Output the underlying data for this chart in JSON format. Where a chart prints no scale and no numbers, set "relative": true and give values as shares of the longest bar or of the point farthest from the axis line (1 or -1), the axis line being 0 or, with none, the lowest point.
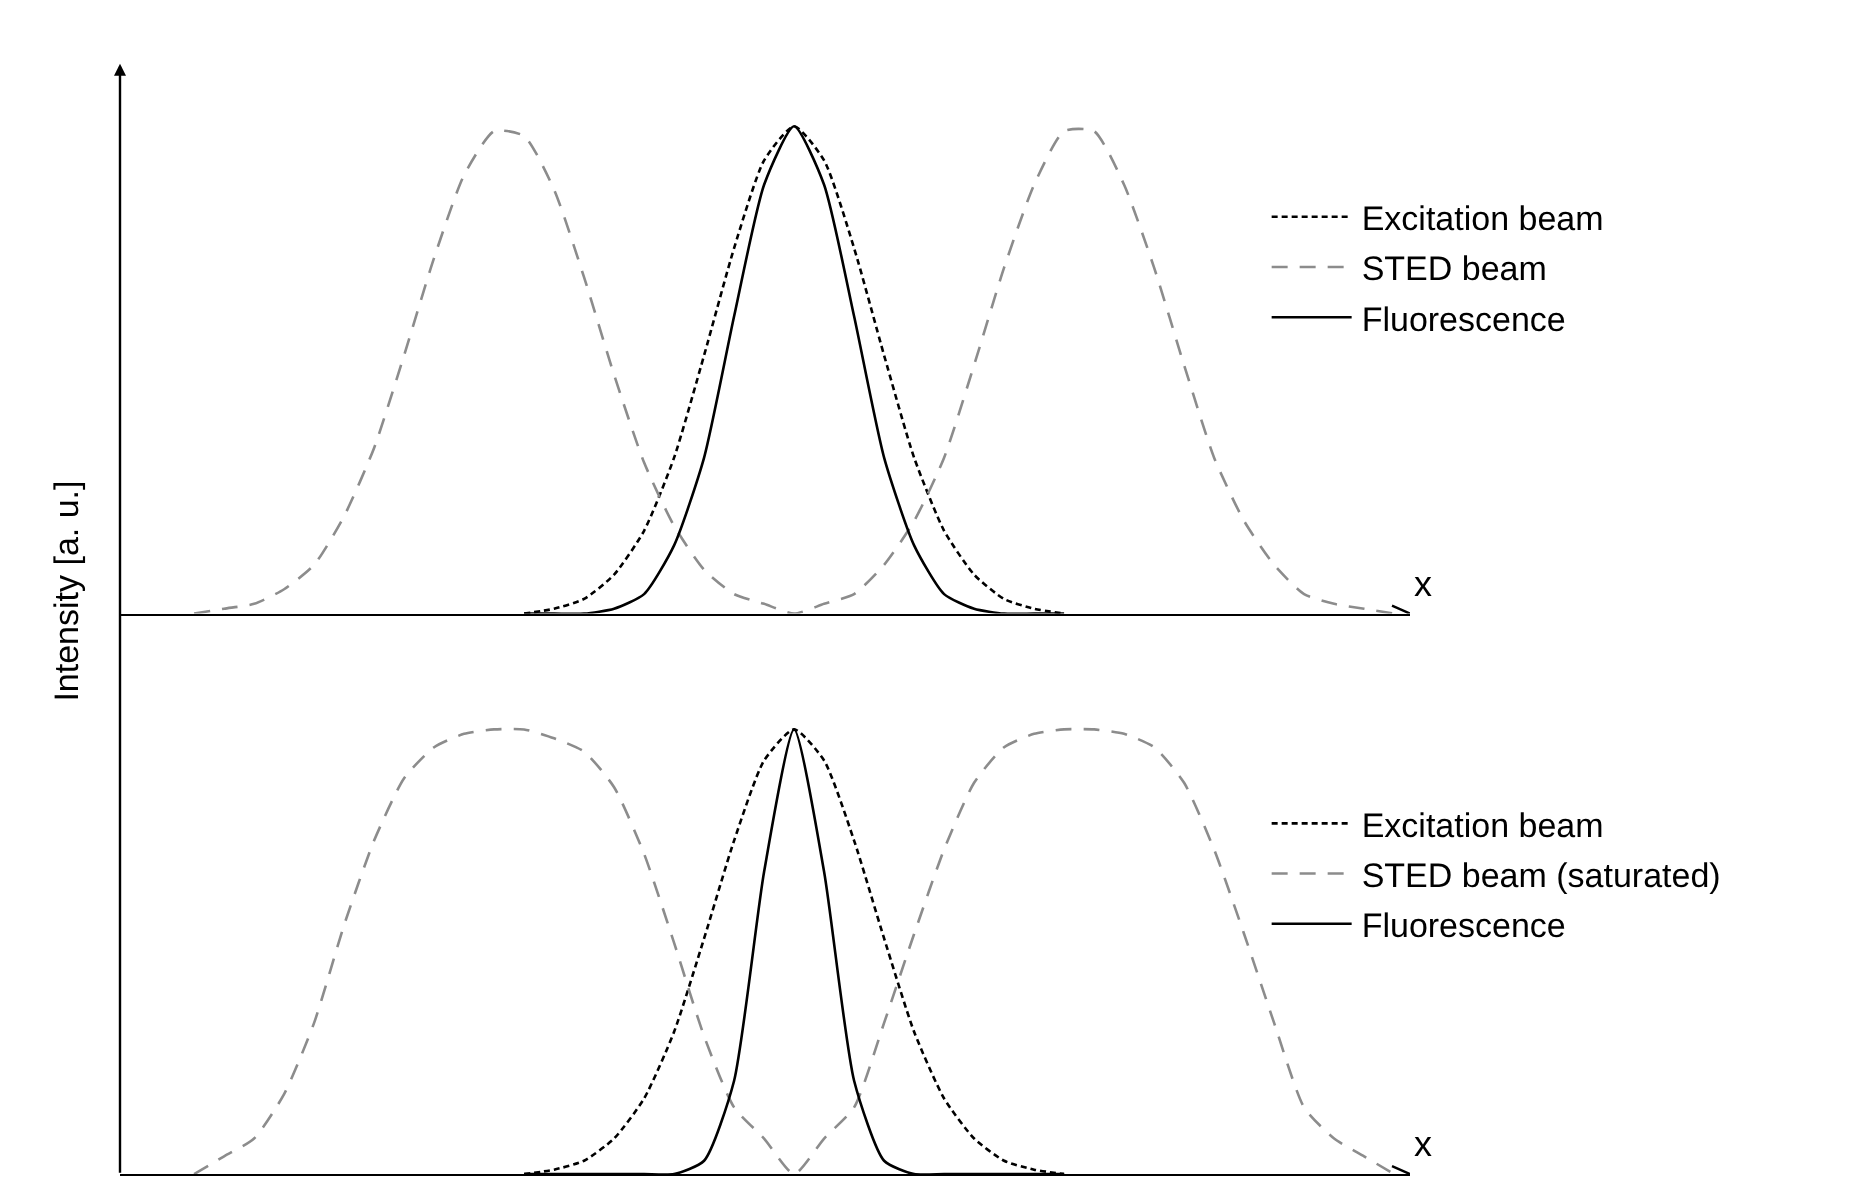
{
  "chart_data": [
    {
      "type": "line",
      "relative": true,
      "xlabel": "x",
      "ylabel": "Intensity [a. u.]",
      "legend": "top right",
      "marker": "none",
      "categories": [
        null,
        null,
        null,
        null,
        null,
        null,
        null,
        null,
        null,
        null,
        null,
        null,
        null,
        null,
        null,
        null,
        null,
        null,
        null,
        null,
        null,
        null,
        null,
        null,
        null,
        null,
        null,
        null,
        null,
        null,
        null,
        null,
        null,
        null,
        null,
        null,
        null,
        null,
        null,
        null,
        null
      ],
      "series": [
        {
          "name": "Excitation beam",
          "color": "#000000",
          "line_style": "dotted",
          "values": [
            null,
            null,
            null,
            null,
            null,
            null,
            null,
            null,
            null,
            null,
            null,
            0,
            0.01,
            0.03,
            0.08,
            0.17,
            0.32,
            0.53,
            0.75,
            0.93,
            1,
            0.93,
            0.75,
            0.53,
            0.32,
            0.17,
            0.08,
            0.03,
            0.01,
            0,
            null,
            null,
            null,
            null,
            null,
            null,
            null,
            null,
            null,
            null,
            null
          ]
        },
        {
          "name": "STED beam",
          "color": "#8c8c8c",
          "line_style": "dashed",
          "values": [
            0,
            0.01,
            0.02,
            0.05,
            0.1,
            0.2,
            0.34,
            0.53,
            0.73,
            0.9,
            0.99,
            0.98,
            0.87,
            0.69,
            0.49,
            0.31,
            0.18,
            0.09,
            0.04,
            0.02,
            0,
            0.02,
            0.04,
            0.1,
            0.19,
            0.32,
            0.51,
            0.71,
            0.88,
            0.99,
            0.99,
            0.88,
            0.71,
            0.51,
            0.32,
            0.19,
            0.1,
            0.04,
            0.02,
            0.01,
            0
          ]
        },
        {
          "name": "Fluorescence",
          "color": "#000000",
          "line_style": "solid",
          "values": [
            null,
            null,
            null,
            null,
            null,
            null,
            null,
            null,
            null,
            null,
            null,
            0,
            0,
            0,
            0.01,
            0.04,
            0.14,
            0.32,
            0.61,
            0.88,
            1,
            0.88,
            0.61,
            0.32,
            0.14,
            0.04,
            0.01,
            0,
            0,
            0,
            null,
            null,
            null,
            null,
            null,
            null,
            null,
            null,
            null,
            null,
            null
          ]
        }
      ]
    },
    {
      "type": "line",
      "relative": true,
      "xlabel": "x",
      "legend": "top right",
      "marker": "none",
      "categories": [
        null,
        null,
        null,
        null,
        null,
        null,
        null,
        null,
        null,
        null,
        null,
        null,
        null,
        null,
        null,
        null,
        null,
        null,
        null,
        null,
        null,
        null,
        null,
        null,
        null,
        null,
        null,
        null,
        null,
        null,
        null,
        null,
        null,
        null,
        null,
        null,
        null,
        null,
        null,
        null,
        null
      ],
      "series": [
        {
          "name": "Excitation beam",
          "color": "#000000",
          "line_style": "dotted",
          "values": [
            null,
            null,
            null,
            null,
            null,
            null,
            null,
            null,
            null,
            null,
            null,
            0,
            0.01,
            0.03,
            0.08,
            0.17,
            0.32,
            0.53,
            0.75,
            0.93,
            1,
            0.93,
            0.75,
            0.53,
            0.32,
            0.17,
            0.08,
            0.03,
            0.01,
            0,
            null,
            null,
            null,
            null,
            null,
            null,
            null,
            null,
            null,
            null,
            null
          ]
        },
        {
          "name": "STED beam (saturated)",
          "color": "#8c8c8c",
          "line_style": "dashed",
          "values": [
            0,
            0.04,
            0.08,
            0.18,
            0.34,
            0.56,
            0.75,
            0.89,
            0.96,
            0.99,
            1,
            1,
            0.98,
            0.95,
            0.87,
            0.72,
            0.52,
            0.31,
            0.15,
            0.08,
            0,
            0.08,
            0.15,
            0.34,
            0.54,
            0.73,
            0.88,
            0.96,
            0.99,
            1,
            1,
            0.99,
            0.96,
            0.88,
            0.73,
            0.54,
            0.34,
            0.15,
            0.08,
            0.04,
            0
          ]
        },
        {
          "name": "Fluorescence",
          "color": "#000000",
          "line_style": "solid",
          "values": [
            null,
            null,
            null,
            null,
            null,
            null,
            null,
            null,
            null,
            null,
            null,
            0,
            0,
            0,
            0,
            0,
            0,
            0.03,
            0.21,
            0.68,
            1,
            0.68,
            0.21,
            0.03,
            0,
            0,
            0,
            0,
            0,
            0,
            null,
            null,
            null,
            null,
            null,
            null,
            null,
            null,
            null,
            null,
            null
          ]
        }
      ]
    }
  ]
}
